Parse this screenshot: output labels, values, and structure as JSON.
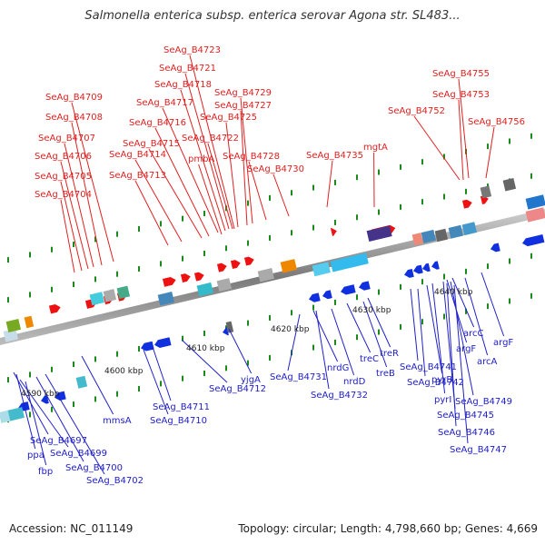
{
  "title": "Salmonella enterica subsp. enterica serovar Agona str. SL483...",
  "footer": {
    "accession": "Accession: NC_011149",
    "topology": "Topology: circular; Length: 4,798,660 bp; Genes: 4,669"
  },
  "colors": {
    "forward_label": "#e02020",
    "reverse_label": "#2020c8",
    "forward_gene": "#ee1111",
    "reverse_gene": "#1030e0",
    "backbone": "#888888",
    "tick": "#1a8a1a"
  },
  "scale_labels": [
    "4590 kbp",
    "4600 kbp",
    "4610 kbp",
    "4620 kbp",
    "4630 kbp",
    "4640 kbp"
  ],
  "top_labels": [
    "SeAg_B4723",
    "SeAg_B4721",
    "SeAg_B4718",
    "SeAg_B4717",
    "SeAg_B4716",
    "SeAg_B4715",
    "SeAg_B4714",
    "SeAg_B4713",
    "SeAg_B4729",
    "SeAg_B4727",
    "SeAg_B4725",
    "SeAg_B4722",
    "pmbA",
    "SeAg_B4728",
    "SeAg_B4730",
    "SeAg_B4735",
    "mgtA",
    "SeAg_B4709",
    "SeAg_B4708",
    "SeAg_B4707",
    "SeAg_B4706",
    "SeAg_B4705",
    "SeAg_B4704",
    "SeAg_B4755",
    "SeAg_B4753",
    "SeAg_B4752",
    "SeAg_B4756"
  ],
  "bottom_labels": [
    "SeAg_B4697",
    "ppa",
    "SeAg_B4699",
    "fbp",
    "SeAg_B4700",
    "SeAg_B4702",
    "mmsA",
    "SeAg_B4711",
    "SeAg_B4710",
    "SeAg_B4712",
    "yjgA",
    "SeAg_B4731",
    "nrdG",
    "SeAg_B4732",
    "nrdD",
    "treC",
    "treR",
    "treB",
    "SeAg_B4741",
    "SeAg_B4742",
    "pyrB",
    "pyrI",
    "argF",
    "arcC",
    "arcA",
    "argF",
    "SeAg_B4749",
    "SeAg_B4745",
    "SeAg_B4746",
    "SeAg_B4747"
  ]
}
